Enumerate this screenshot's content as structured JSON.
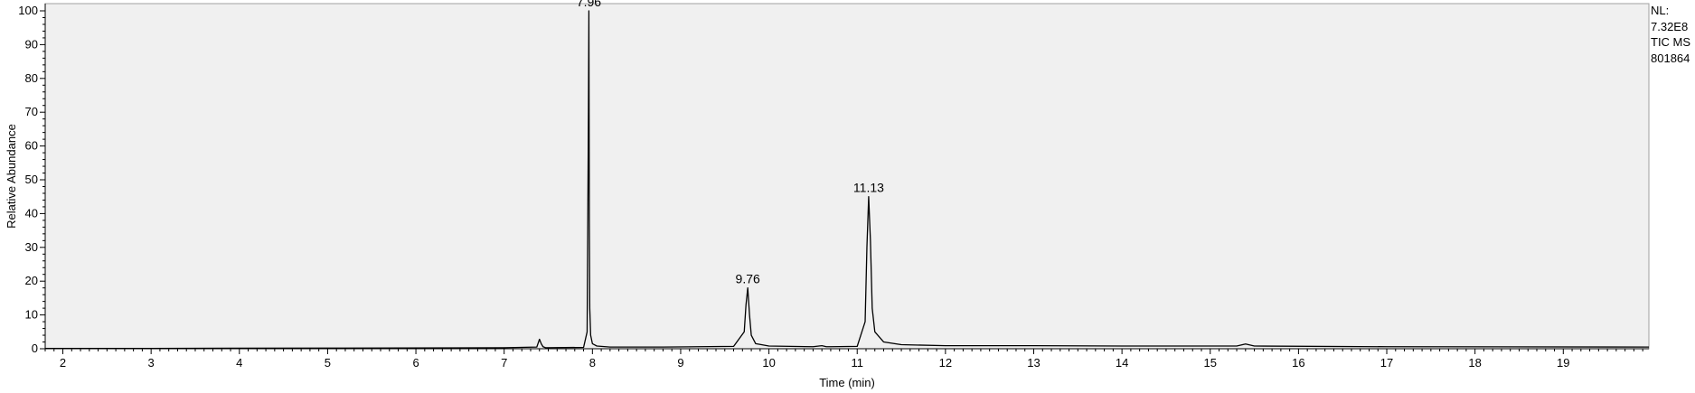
{
  "chart_data": {
    "type": "line",
    "xlabel": "Time (min)",
    "ylabel": "Relative Abundance",
    "xlim": [
      1.8,
      19.97
    ],
    "ylim": [
      0,
      100
    ],
    "x_ticks": [
      2,
      3,
      4,
      5,
      6,
      7,
      8,
      9,
      10,
      11,
      12,
      13,
      14,
      15,
      16,
      17,
      18,
      19
    ],
    "y_ticks": [
      0,
      10,
      20,
      30,
      40,
      50,
      60,
      70,
      80,
      90,
      100
    ],
    "grid": false,
    "plot_background": "#f0f0f0",
    "line_color": "#000000",
    "peak_annotations": [
      {
        "x": 7.96,
        "y": 100,
        "label": "7.96"
      },
      {
        "x": 9.76,
        "y": 18,
        "label": "9.76"
      },
      {
        "x": 11.13,
        "y": 45,
        "label": "11.13"
      }
    ],
    "series": [
      {
        "x": [
          1.8,
          3.0,
          5.0,
          7.0,
          7.37,
          7.4,
          7.42,
          7.44,
          7.47,
          7.9,
          7.94,
          7.955,
          7.96,
          7.965,
          7.97,
          7.98,
          8.0,
          8.05,
          8.2,
          8.8,
          9.2,
          9.6,
          9.72,
          9.74,
          9.76,
          9.78,
          9.8,
          9.85,
          10.0,
          10.5,
          10.6,
          10.65,
          10.7,
          11.0,
          11.09,
          11.11,
          11.13,
          11.15,
          11.17,
          11.2,
          11.3,
          11.5,
          12.0,
          13.0,
          14.0,
          15.3,
          15.4,
          15.5,
          17.0,
          19.97
        ],
        "y": [
          0.1,
          0.1,
          0.2,
          0.3,
          0.5,
          2.8,
          1.5,
          0.6,
          0.3,
          0.4,
          5,
          70,
          100,
          38,
          12,
          4,
          1.5,
          0.8,
          0.5,
          0.5,
          0.6,
          0.7,
          5,
          13,
          18,
          10,
          4,
          1.5,
          0.8,
          0.6,
          0.9,
          0.6,
          0.6,
          0.7,
          8,
          30,
          45,
          32,
          12,
          5,
          2,
          1.2,
          0.9,
          0.9,
          0.8,
          0.8,
          1.4,
          0.8,
          0.6,
          0.5
        ]
      }
    ]
  },
  "info_box": {
    "line1": "NL:",
    "line2": "7.32E8",
    "line3": "TIC  MS",
    "line4": "801864"
  }
}
